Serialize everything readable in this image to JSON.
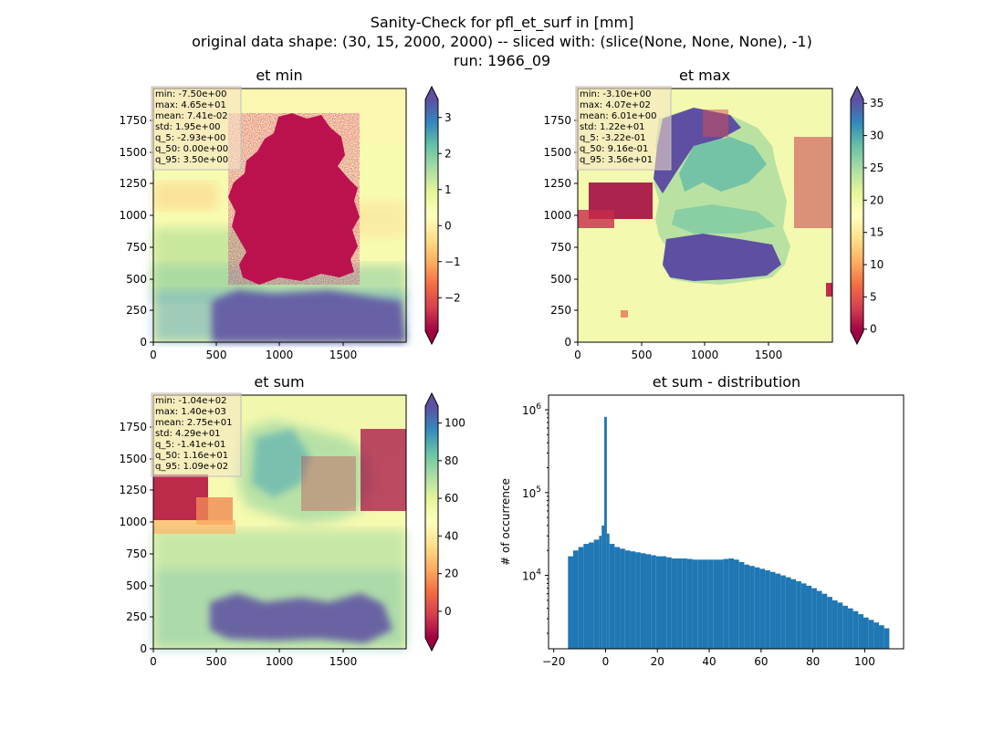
{
  "figure": {
    "title_lines": [
      "Sanity-Check for pfl_et_surf in [mm]",
      "original data shape: (30, 15, 2000, 2000) -- sliced with: (slice(None, None, None), -1)",
      "run: 1966_09"
    ]
  },
  "chart_data": [
    {
      "type": "heatmap",
      "title": "et min",
      "x_ticks": [
        "0",
        "500",
        "1000",
        "1500"
      ],
      "y_ticks": [
        "0",
        "250",
        "500",
        "750",
        "1000",
        "1250",
        "1500",
        "1750"
      ],
      "xlim": [
        0,
        2000
      ],
      "ylim": [
        0,
        2000
      ],
      "colormap": "Spectral",
      "colorbar": {
        "range": [
          -2.93,
          3.5
        ],
        "ticks": [
          "−2",
          "−1",
          "0",
          "1",
          "2",
          "3"
        ],
        "tick_values": [
          -2,
          -1,
          0,
          1,
          2,
          3
        ],
        "extend": "both"
      },
      "stats": [
        "min: -7.50e+00",
        "max: 4.65e+01",
        "mean: 7.41e-02",
        "std: 1.95e+00",
        "q_5: -2.93e+00",
        "q_50: 0.00e+00",
        "q_95: 3.50e+00"
      ]
    },
    {
      "type": "heatmap",
      "title": "et max",
      "x_ticks": [
        "0",
        "500",
        "1000",
        "1500"
      ],
      "y_ticks": [
        "0",
        "250",
        "500",
        "750",
        "1000",
        "1250",
        "1500",
        "1750"
      ],
      "xlim": [
        0,
        2000
      ],
      "ylim": [
        0,
        2000
      ],
      "colormap": "Spectral",
      "colorbar": {
        "range": [
          -0.322,
          35.6
        ],
        "ticks": [
          "0",
          "5",
          "10",
          "15",
          "20",
          "25",
          "30",
          "35"
        ],
        "tick_values": [
          0,
          5,
          10,
          15,
          20,
          25,
          30,
          35
        ],
        "extend": "both"
      },
      "stats": [
        "min: -3.10e+00",
        "max: 4.07e+02",
        "mean: 6.01e+00",
        "std: 1.22e+01",
        "q_5: -3.22e-01",
        "q_50: 9.16e-01",
        "q_95: 3.56e+01"
      ]
    },
    {
      "type": "heatmap",
      "title": "et sum",
      "x_ticks": [
        "0",
        "500",
        "1000",
        "1500"
      ],
      "y_ticks": [
        "0",
        "250",
        "500",
        "750",
        "1000",
        "1250",
        "1500",
        "1750"
      ],
      "xlim": [
        0,
        2000
      ],
      "ylim": [
        0,
        2000
      ],
      "colormap": "Spectral",
      "colorbar": {
        "range": [
          -14.1,
          109
        ],
        "ticks": [
          "0",
          "20",
          "40",
          "60",
          "80",
          "100"
        ],
        "tick_values": [
          0,
          20,
          40,
          60,
          80,
          100
        ],
        "extend": "both"
      },
      "stats": [
        "min: -1.04e+02",
        "max: 1.40e+03",
        "mean: 2.75e+01",
        "std: 4.29e+01",
        "q_5: -1.41e+01",
        "q_50: 1.16e+01",
        "q_95: 1.09e+02"
      ]
    },
    {
      "type": "bar",
      "title": "et sum - distribution",
      "ylabel": "# of occurrence",
      "yscale": "log",
      "x_ticks": [
        "−20",
        "0",
        "20",
        "40",
        "60",
        "80",
        "100"
      ],
      "x_tick_values": [
        -20,
        0,
        20,
        40,
        60,
        80,
        100
      ],
      "y_ticks": [
        "10^4",
        "10^5",
        "10^6"
      ],
      "y_tick_values": [
        10000,
        100000,
        1000000
      ],
      "xlim": [
        -22,
        115
      ],
      "ylim": [
        1300,
        1500000
      ],
      "color": "#1f77b4",
      "bins": [
        {
          "x": -14,
          "y": 17000
        },
        {
          "x": -12,
          "y": 20000
        },
        {
          "x": -10,
          "y": 22000
        },
        {
          "x": -8,
          "y": 24000
        },
        {
          "x": -6,
          "y": 25000
        },
        {
          "x": -4,
          "y": 27000
        },
        {
          "x": -2,
          "y": 30000
        },
        {
          "x": -1,
          "y": 40000
        },
        {
          "x": 0,
          "y": 820000
        },
        {
          "x": 1,
          "y": 32000
        },
        {
          "x": 2,
          "y": 24000
        },
        {
          "x": 4,
          "y": 22000
        },
        {
          "x": 6,
          "y": 21000
        },
        {
          "x": 8,
          "y": 20000
        },
        {
          "x": 10,
          "y": 19500
        },
        {
          "x": 12,
          "y": 19000
        },
        {
          "x": 14,
          "y": 18500
        },
        {
          "x": 16,
          "y": 18000
        },
        {
          "x": 18,
          "y": 17500
        },
        {
          "x": 20,
          "y": 17000
        },
        {
          "x": 22,
          "y": 17000
        },
        {
          "x": 24,
          "y": 16500
        },
        {
          "x": 26,
          "y": 16000
        },
        {
          "x": 28,
          "y": 16000
        },
        {
          "x": 30,
          "y": 16000
        },
        {
          "x": 32,
          "y": 15800
        },
        {
          "x": 34,
          "y": 15500
        },
        {
          "x": 36,
          "y": 15500
        },
        {
          "x": 38,
          "y": 15500
        },
        {
          "x": 40,
          "y": 15500
        },
        {
          "x": 42,
          "y": 15500
        },
        {
          "x": 44,
          "y": 15500
        },
        {
          "x": 46,
          "y": 15800
        },
        {
          "x": 48,
          "y": 16000
        },
        {
          "x": 50,
          "y": 15500
        },
        {
          "x": 52,
          "y": 14500
        },
        {
          "x": 54,
          "y": 13500
        },
        {
          "x": 56,
          "y": 13000
        },
        {
          "x": 58,
          "y": 12500
        },
        {
          "x": 60,
          "y": 12000
        },
        {
          "x": 62,
          "y": 11500
        },
        {
          "x": 64,
          "y": 11000
        },
        {
          "x": 66,
          "y": 10500
        },
        {
          "x": 68,
          "y": 10000
        },
        {
          "x": 70,
          "y": 9500
        },
        {
          "x": 72,
          "y": 9000
        },
        {
          "x": 74,
          "y": 8500
        },
        {
          "x": 76,
          "y": 8000
        },
        {
          "x": 78,
          "y": 7500
        },
        {
          "x": 80,
          "y": 7000
        },
        {
          "x": 82,
          "y": 6500
        },
        {
          "x": 84,
          "y": 6000
        },
        {
          "x": 86,
          "y": 5500
        },
        {
          "x": 88,
          "y": 5000
        },
        {
          "x": 90,
          "y": 4700
        },
        {
          "x": 92,
          "y": 4300
        },
        {
          "x": 94,
          "y": 4000
        },
        {
          "x": 96,
          "y": 3700
        },
        {
          "x": 98,
          "y": 3400
        },
        {
          "x": 100,
          "y": 3100
        },
        {
          "x": 102,
          "y": 2900
        },
        {
          "x": 104,
          "y": 2700
        },
        {
          "x": 106,
          "y": 2500
        },
        {
          "x": 108,
          "y": 2300
        }
      ]
    }
  ]
}
